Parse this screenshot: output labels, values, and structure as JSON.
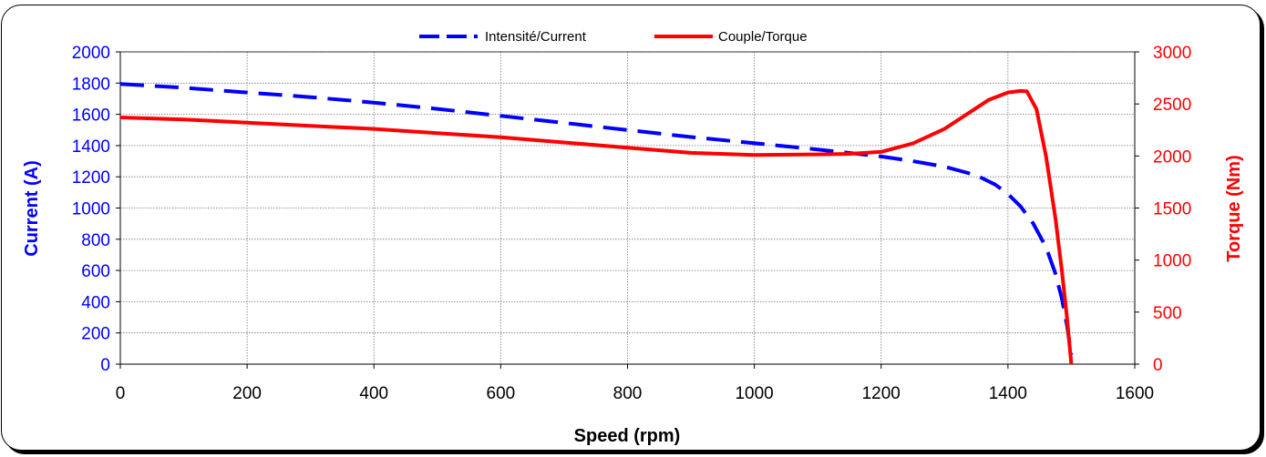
{
  "chart_data": {
    "type": "line",
    "xlabel": "Speed (rpm)",
    "ylabel_left": "Current (A)",
    "ylabel_right": "Torque (Nm)",
    "xlim": [
      0,
      1600
    ],
    "ylim_left": [
      0,
      2000
    ],
    "ylim_right": [
      0,
      3000
    ],
    "x_ticks": [
      0,
      200,
      400,
      600,
      800,
      1000,
      1200,
      1400,
      1600
    ],
    "y_left_ticks": [
      0,
      200,
      400,
      600,
      800,
      1000,
      1200,
      1400,
      1600,
      1800,
      2000
    ],
    "y_right_ticks": [
      0,
      500,
      1000,
      1500,
      2000,
      2500,
      3000
    ],
    "grid": true,
    "legend_position": "top-center",
    "series": [
      {
        "name": "Intensité/Current",
        "axis": "left",
        "color": "#0000ff",
        "style": "dashed",
        "points": [
          [
            0,
            1795
          ],
          [
            100,
            1770
          ],
          [
            200,
            1740
          ],
          [
            300,
            1710
          ],
          [
            400,
            1675
          ],
          [
            500,
            1635
          ],
          [
            600,
            1590
          ],
          [
            700,
            1545
          ],
          [
            800,
            1500
          ],
          [
            900,
            1455
          ],
          [
            1000,
            1415
          ],
          [
            1100,
            1375
          ],
          [
            1200,
            1330
          ],
          [
            1250,
            1300
          ],
          [
            1300,
            1265
          ],
          [
            1350,
            1210
          ],
          [
            1380,
            1150
          ],
          [
            1400,
            1090
          ],
          [
            1420,
            1010
          ],
          [
            1440,
            900
          ],
          [
            1460,
            750
          ],
          [
            1475,
            580
          ],
          [
            1485,
            420
          ],
          [
            1493,
            250
          ],
          [
            1500,
            60
          ]
        ]
      },
      {
        "name": "Couple/Torque",
        "axis": "right",
        "color": "#ff0000",
        "style": "solid",
        "points": [
          [
            0,
            2370
          ],
          [
            100,
            2350
          ],
          [
            200,
            2320
          ],
          [
            300,
            2290
          ],
          [
            400,
            2260
          ],
          [
            500,
            2220
          ],
          [
            600,
            2180
          ],
          [
            700,
            2130
          ],
          [
            800,
            2080
          ],
          [
            900,
            2030
          ],
          [
            1000,
            2010
          ],
          [
            1100,
            2015
          ],
          [
            1150,
            2020
          ],
          [
            1200,
            2040
          ],
          [
            1250,
            2120
          ],
          [
            1300,
            2260
          ],
          [
            1340,
            2420
          ],
          [
            1370,
            2540
          ],
          [
            1400,
            2610
          ],
          [
            1420,
            2625
          ],
          [
            1430,
            2620
          ],
          [
            1445,
            2450
          ],
          [
            1460,
            2000
          ],
          [
            1475,
            1400
          ],
          [
            1485,
            900
          ],
          [
            1493,
            450
          ],
          [
            1500,
            0
          ]
        ]
      }
    ]
  }
}
